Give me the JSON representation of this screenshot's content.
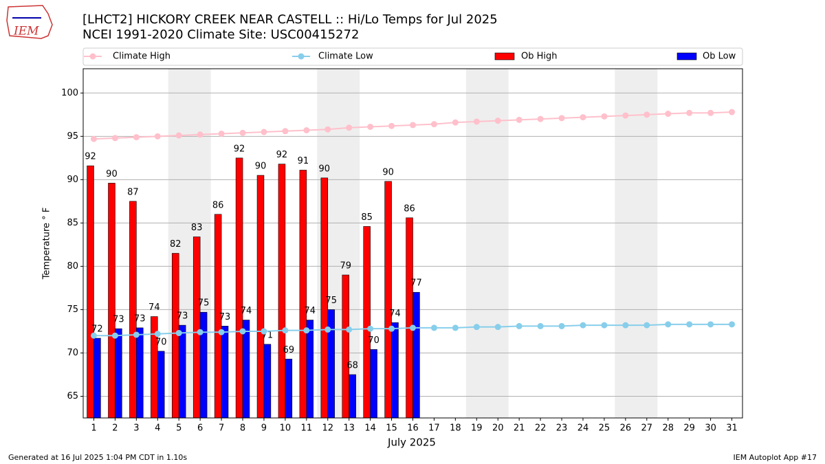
{
  "logo_text": "IEM",
  "footer_left": "Generated at 16 Jul 2025 1:04 PM CDT in 1.10s",
  "footer_right": "IEM Autoplot App #17",
  "chart_data": {
    "type": "bar",
    "title": "[LHCT2] HICKORY CREEK NEAR CASTELL :: Hi/Lo Temps for Jul 2025",
    "subtitle": "NCEI 1991-2020 Climate Site: USC00415272",
    "x_label": "July 2025",
    "y_label": "Temperature ° F",
    "x": [
      1,
      2,
      3,
      4,
      5,
      6,
      7,
      8,
      9,
      10,
      11,
      12,
      13,
      14,
      15,
      16,
      17,
      18,
      19,
      20,
      21,
      22,
      23,
      24,
      25,
      26,
      27,
      28,
      29,
      30,
      31
    ],
    "xlim": [
      0.5,
      31.5
    ],
    "xticks": [
      1,
      2,
      3,
      4,
      5,
      6,
      7,
      8,
      9,
      10,
      11,
      12,
      13,
      14,
      15,
      16,
      17,
      18,
      19,
      20,
      21,
      22,
      23,
      24,
      25,
      26,
      27,
      28,
      29,
      30,
      31
    ],
    "ylim": [
      62.5,
      102.8
    ],
    "yticks": [
      65,
      70,
      75,
      80,
      85,
      90,
      95,
      100
    ],
    "grid": true,
    "legend": "top",
    "series": [
      {
        "name": "Climate High",
        "type": "line",
        "color": "#ffc0cb",
        "values": [
          94.7,
          94.8,
          94.9,
          95.0,
          95.1,
          95.2,
          95.3,
          95.4,
          95.5,
          95.6,
          95.7,
          95.8,
          96.0,
          96.1,
          96.2,
          96.3,
          96.4,
          96.6,
          96.7,
          96.8,
          96.9,
          97.0,
          97.1,
          97.2,
          97.3,
          97.4,
          97.5,
          97.6,
          97.7,
          97.7,
          97.8
        ]
      },
      {
        "name": "Climate Low",
        "type": "line",
        "color": "#87ceeb",
        "values": [
          72.0,
          72.0,
          72.1,
          72.2,
          72.3,
          72.4,
          72.4,
          72.5,
          72.5,
          72.6,
          72.6,
          72.7,
          72.7,
          72.8,
          72.8,
          72.9,
          72.9,
          72.9,
          73.0,
          73.0,
          73.1,
          73.1,
          73.1,
          73.2,
          73.2,
          73.2,
          73.2,
          73.3,
          73.3,
          73.3,
          73.3
        ]
      },
      {
        "name": "Ob High",
        "type": "bar",
        "color": "#ff0000",
        "values": [
          91.6,
          89.6,
          87.5,
          74.2,
          81.5,
          83.4,
          86.0,
          92.5,
          90.5,
          91.8,
          91.1,
          90.2,
          79.0,
          84.6,
          89.8,
          85.6,
          null,
          null,
          null,
          null,
          null,
          null,
          null,
          null,
          null,
          null,
          null,
          null,
          null,
          null,
          null
        ],
        "value_labels": [
          "92",
          "90",
          "87",
          "74",
          "82",
          "83",
          "86",
          "92",
          "90",
          "92",
          "91",
          "90",
          "79",
          "85",
          "90",
          "86",
          null,
          null,
          null,
          null,
          null,
          null,
          null,
          null,
          null,
          null,
          null,
          null,
          null,
          null,
          null
        ]
      },
      {
        "name": "Ob Low",
        "type": "bar",
        "color": "#0000ff",
        "values": [
          71.7,
          72.8,
          72.9,
          70.2,
          73.2,
          74.7,
          73.1,
          73.8,
          71.0,
          69.3,
          73.8,
          75.0,
          67.5,
          70.4,
          73.5,
          77.0,
          null,
          null,
          null,
          null,
          null,
          null,
          null,
          null,
          null,
          null,
          null,
          null,
          null,
          null,
          null
        ],
        "value_labels": [
          "72",
          "73",
          "73",
          "70",
          "73",
          "75",
          "73",
          "74",
          "71",
          "69",
          "74",
          "75",
          "68",
          "70",
          "74",
          "77",
          null,
          null,
          null,
          null,
          null,
          null,
          null,
          null,
          null,
          null,
          null,
          null,
          null,
          null,
          null
        ]
      }
    ]
  }
}
